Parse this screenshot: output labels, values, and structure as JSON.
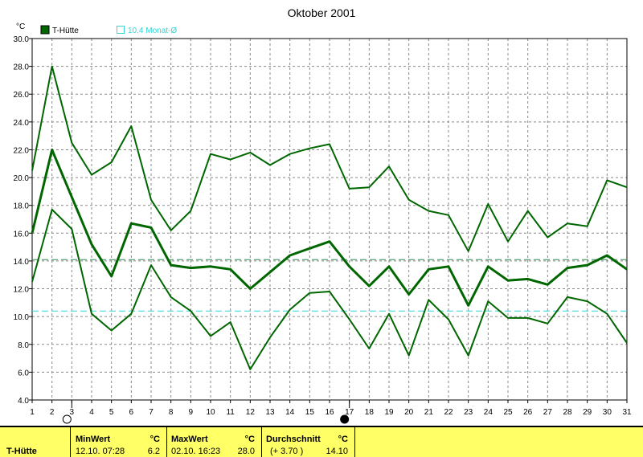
{
  "colors": {
    "series": "#006600",
    "avg_line": "#2e8b57",
    "month_line": "#33d6d6",
    "grid": "#888888",
    "footer_bg": "#ffff66"
  },
  "legend": {
    "series": "T-Hütte",
    "month": "10.4 Monat-Ø"
  },
  "chart_data": {
    "type": "line",
    "title": "Oktober 2001",
    "ylabel": "°C",
    "ylim": [
      4.0,
      30.0
    ],
    "yticks": [
      "4.0",
      "6.0",
      "8.0",
      "10.0",
      "12.0",
      "14.0",
      "16.0",
      "18.0",
      "20.0",
      "22.0",
      "24.0",
      "26.0",
      "28.0",
      "30.0"
    ],
    "x": [
      1,
      2,
      3,
      4,
      5,
      6,
      7,
      8,
      9,
      10,
      11,
      12,
      13,
      14,
      15,
      16,
      17,
      18,
      19,
      20,
      21,
      22,
      23,
      24,
      25,
      26,
      27,
      28,
      29,
      30,
      31
    ],
    "series": [
      {
        "role": "max",
        "values": [
          20.5,
          28.0,
          22.5,
          20.2,
          21.1,
          23.7,
          18.4,
          16.2,
          17.6,
          21.7,
          21.3,
          21.8,
          20.9,
          21.7,
          22.1,
          22.4,
          19.2,
          19.3,
          20.8,
          18.4,
          17.6,
          17.3,
          14.7,
          18.1,
          15.4,
          17.6,
          15.7,
          16.7,
          16.5,
          19.8,
          19.3
        ]
      },
      {
        "role": "mean",
        "values": [
          16.0,
          22.0,
          18.6,
          15.2,
          12.9,
          16.7,
          16.4,
          13.7,
          13.5,
          13.6,
          13.4,
          12.0,
          13.2,
          14.4,
          14.9,
          15.4,
          13.6,
          12.2,
          13.6,
          11.6,
          13.4,
          13.6,
          10.8,
          13.6,
          12.6,
          12.7,
          12.3,
          13.5,
          13.7,
          14.4,
          13.4
        ]
      },
      {
        "role": "min",
        "values": [
          12.5,
          17.7,
          16.3,
          10.2,
          9.0,
          10.2,
          13.7,
          11.4,
          10.4,
          8.6,
          9.6,
          6.2,
          8.5,
          10.5,
          11.7,
          11.8,
          9.8,
          7.7,
          10.2,
          7.2,
          11.2,
          9.8,
          7.2,
          11.1,
          9.9,
          9.9,
          9.5,
          11.4,
          11.1,
          10.2,
          8.1
        ]
      }
    ],
    "reference_lines": [
      {
        "name": "period_average",
        "value": 14.1
      },
      {
        "name": "month_average",
        "value": 10.4
      }
    ],
    "markers": [
      {
        "day": 3,
        "symbol": "open-circle"
      },
      {
        "day": 17,
        "symbol": "filled-circle"
      }
    ],
    "grid": true
  },
  "stats": {
    "station": "T-Hütte",
    "min": {
      "label": "MinWert",
      "unit": "°C",
      "time": "12.10.  07:28",
      "value": "6.2"
    },
    "max": {
      "label": "MaxWert",
      "unit": "°C",
      "time": "02.10.  16:23",
      "value": "28.0"
    },
    "avg": {
      "label": "Durchschnitt",
      "unit": "°C",
      "diff": "(+ 3.70 )",
      "value": "14.10"
    }
  }
}
